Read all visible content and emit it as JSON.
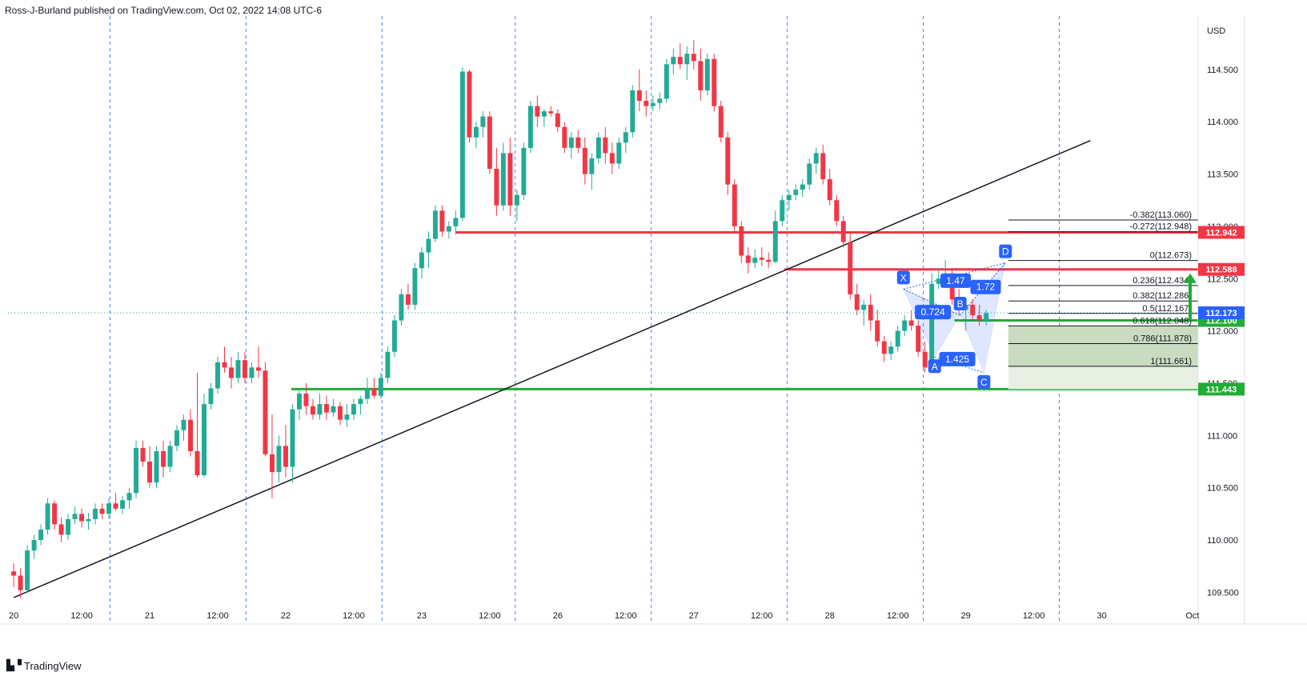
{
  "header": {
    "attribution": "Ross-J-Burland published on TradingView.com, Oct 02, 2022 14:08 UTC-6"
  },
  "footer": {
    "brand": "TradingView",
    "logo": "tradingview-logo-icon"
  },
  "chart_data": {
    "type": "candlestick",
    "instrument_note": "",
    "currency": "USD",
    "ylim": [
      109.35,
      114.95
    ],
    "y_ticks": [
      109.5,
      110.0,
      110.5,
      111.0,
      111.5,
      112.0,
      112.5,
      113.0,
      113.5,
      114.0,
      114.5
    ],
    "y_tick_labels": [
      "109.500",
      "110.000",
      "110.500",
      "111.000",
      "111.500",
      "112.000",
      "112.500",
      "113.000",
      "113.500",
      "114.000",
      "114.500"
    ],
    "x_tick_labels": [
      {
        "t": 0,
        "label": "20"
      },
      {
        "t": 12,
        "label": "12:00"
      },
      {
        "t": 24,
        "label": "21"
      },
      {
        "t": 36,
        "label": "12:00"
      },
      {
        "t": 48,
        "label": "22"
      },
      {
        "t": 60,
        "label": "12:00"
      },
      {
        "t": 72,
        "label": "23"
      },
      {
        "t": 84,
        "label": "12:00"
      },
      {
        "t": 96,
        "label": "26"
      },
      {
        "t": 108,
        "label": "12:00"
      },
      {
        "t": 120,
        "label": "27"
      },
      {
        "t": 132,
        "label": "12:00"
      },
      {
        "t": 144,
        "label": "28"
      },
      {
        "t": 156,
        "label": "12:00"
      },
      {
        "t": 168,
        "label": "29"
      },
      {
        "t": 180,
        "label": "12:00"
      },
      {
        "t": 192,
        "label": "30"
      },
      {
        "t": 208,
        "label": "Oct"
      }
    ],
    "session_dividers_t": [
      17,
      41,
      65,
      88.5,
      112.5,
      136.5,
      160.5,
      184.5
    ],
    "candles": [
      [
        0,
        109.7,
        109.78,
        109.55,
        109.66
      ],
      [
        1.2,
        109.66,
        109.73,
        109.45,
        109.52
      ],
      [
        2.4,
        109.52,
        109.95,
        109.5,
        109.9
      ],
      [
        3.6,
        109.9,
        110.05,
        109.82,
        110.0
      ],
      [
        4.8,
        110.0,
        110.15,
        109.95,
        110.1
      ],
      [
        6,
        110.1,
        110.4,
        110.05,
        110.35
      ],
      [
        7.2,
        110.35,
        110.38,
        110.1,
        110.15
      ],
      [
        8.4,
        110.15,
        110.22,
        109.98,
        110.05
      ],
      [
        9.6,
        110.05,
        110.25,
        110.0,
        110.2
      ],
      [
        10.8,
        110.2,
        110.32,
        110.15,
        110.25
      ],
      [
        12,
        110.25,
        110.3,
        110.12,
        110.18
      ],
      [
        13.2,
        110.18,
        110.26,
        110.1,
        110.2
      ],
      [
        14.4,
        110.2,
        110.35,
        110.15,
        110.3
      ],
      [
        15.6,
        110.3,
        110.35,
        110.2,
        110.25
      ],
      [
        16.8,
        110.25,
        110.4,
        110.2,
        110.35
      ],
      [
        18,
        110.35,
        110.45,
        110.28,
        110.3
      ],
      [
        19.2,
        110.3,
        110.42,
        110.25,
        110.38
      ],
      [
        20.4,
        110.38,
        110.5,
        110.3,
        110.45
      ],
      [
        21.6,
        110.45,
        110.95,
        110.4,
        110.88
      ],
      [
        22.8,
        110.88,
        110.95,
        110.7,
        110.75
      ],
      [
        24,
        110.75,
        110.9,
        110.5,
        110.55
      ],
      [
        25.2,
        110.55,
        110.9,
        110.5,
        110.85
      ],
      [
        26.4,
        110.85,
        110.95,
        110.6,
        110.7
      ],
      [
        27.6,
        110.7,
        110.95,
        110.65,
        110.9
      ],
      [
        28.8,
        110.9,
        111.1,
        110.85,
        111.05
      ],
      [
        30,
        111.05,
        111.2,
        110.95,
        111.15
      ],
      [
        31.2,
        111.15,
        111.25,
        110.8,
        110.85
      ],
      [
        32.4,
        110.85,
        111.6,
        110.6,
        110.62
      ],
      [
        33.6,
        110.62,
        111.4,
        110.6,
        111.3
      ],
      [
        34.8,
        111.3,
        111.5,
        111.25,
        111.45
      ],
      [
        36,
        111.45,
        111.75,
        111.4,
        111.7
      ],
      [
        37.2,
        111.7,
        111.85,
        111.6,
        111.65
      ],
      [
        38.4,
        111.65,
        111.75,
        111.45,
        111.55
      ],
      [
        39.6,
        111.55,
        111.8,
        111.5,
        111.72
      ],
      [
        40.8,
        111.72,
        111.8,
        111.5,
        111.55
      ],
      [
        42,
        111.55,
        111.7,
        111.5,
        111.65
      ],
      [
        43.2,
        111.65,
        111.85,
        111.55,
        111.62
      ],
      [
        44.4,
        111.62,
        111.7,
        110.8,
        110.82
      ],
      [
        45.6,
        110.82,
        111.2,
        110.4,
        110.65
      ],
      [
        46.8,
        110.65,
        111.0,
        110.55,
        110.9
      ],
      [
        48,
        110.9,
        111.1,
        110.6,
        110.7
      ],
      [
        49.2,
        110.7,
        111.3,
        110.55,
        111.25
      ],
      [
        50.4,
        111.25,
        111.45,
        111.15,
        111.4
      ],
      [
        51.6,
        111.4,
        111.5,
        111.2,
        111.28
      ],
      [
        52.8,
        111.28,
        111.35,
        111.15,
        111.2
      ],
      [
        54,
        111.2,
        111.4,
        111.15,
        111.3
      ],
      [
        55.2,
        111.3,
        111.38,
        111.15,
        111.22
      ],
      [
        56.4,
        111.22,
        111.35,
        111.18,
        111.28
      ],
      [
        57.6,
        111.28,
        111.32,
        111.1,
        111.15
      ],
      [
        58.8,
        111.15,
        111.3,
        111.08,
        111.2
      ],
      [
        60,
        111.2,
        111.35,
        111.15,
        111.3
      ],
      [
        61.2,
        111.3,
        111.38,
        111.2,
        111.35
      ],
      [
        62.4,
        111.35,
        111.55,
        111.3,
        111.45
      ],
      [
        63.6,
        111.45,
        111.55,
        111.35,
        111.38
      ],
      [
        64.8,
        111.38,
        111.6,
        111.35,
        111.55
      ],
      [
        66,
        111.55,
        111.85,
        111.5,
        111.8
      ],
      [
        67.2,
        111.8,
        112.15,
        111.75,
        112.1
      ],
      [
        68.4,
        112.1,
        112.4,
        112.05,
        112.35
      ],
      [
        69.6,
        112.35,
        112.45,
        112.2,
        112.25
      ],
      [
        70.8,
        112.25,
        112.65,
        112.2,
        112.6
      ],
      [
        72,
        112.6,
        112.8,
        112.5,
        112.75
      ],
      [
        73.2,
        112.75,
        112.95,
        112.6,
        112.88
      ],
      [
        74.4,
        112.88,
        113.2,
        112.85,
        113.15
      ],
      [
        75.6,
        113.15,
        113.2,
        112.9,
        112.95
      ],
      [
        76.8,
        112.95,
        113.05,
        112.88,
        113.0
      ],
      [
        78,
        113.0,
        113.15,
        112.92,
        113.08
      ],
      [
        79.2,
        113.08,
        114.52,
        113.05,
        114.48
      ],
      [
        80.4,
        114.48,
        114.5,
        113.8,
        113.85
      ],
      [
        81.6,
        113.85,
        114.0,
        113.75,
        113.95
      ],
      [
        82.8,
        113.95,
        114.1,
        113.85,
        114.05
      ],
      [
        84,
        114.05,
        114.1,
        113.5,
        113.55
      ],
      [
        85.2,
        113.55,
        113.75,
        113.1,
        113.2
      ],
      [
        86.4,
        113.2,
        113.8,
        113.15,
        113.7
      ],
      [
        87.6,
        113.7,
        113.85,
        113.1,
        113.2
      ],
      [
        88.8,
        113.2,
        113.35,
        113.05,
        113.3
      ],
      [
        90,
        113.3,
        113.8,
        113.25,
        113.75
      ],
      [
        91.2,
        113.75,
        114.2,
        113.7,
        114.15
      ],
      [
        92.4,
        114.15,
        114.25,
        113.95,
        114.05
      ],
      [
        93.6,
        114.05,
        114.12,
        113.95,
        114.1
      ],
      [
        94.8,
        114.1,
        114.15,
        114.05,
        114.08
      ],
      [
        96,
        114.08,
        114.12,
        113.9,
        113.95
      ],
      [
        97.2,
        113.95,
        114.0,
        113.7,
        113.75
      ],
      [
        98.4,
        113.75,
        113.9,
        113.65,
        113.85
      ],
      [
        99.6,
        113.85,
        113.92,
        113.7,
        113.75
      ],
      [
        100.8,
        113.75,
        113.85,
        113.4,
        113.5
      ],
      [
        102,
        113.5,
        113.7,
        113.35,
        113.65
      ],
      [
        103.2,
        113.65,
        113.9,
        113.6,
        113.85
      ],
      [
        104.4,
        113.85,
        113.95,
        113.6,
        113.7
      ],
      [
        105.6,
        113.7,
        113.8,
        113.5,
        113.6
      ],
      [
        106.8,
        113.6,
        113.85,
        113.55,
        113.8
      ],
      [
        108,
        113.8,
        113.95,
        113.7,
        113.9
      ],
      [
        109.2,
        113.9,
        114.35,
        113.85,
        114.3
      ],
      [
        110.4,
        114.3,
        114.5,
        114.1,
        114.2
      ],
      [
        111.6,
        114.2,
        114.3,
        114.05,
        114.15
      ],
      [
        112.8,
        114.15,
        114.25,
        114.1,
        114.18
      ],
      [
        114,
        114.18,
        114.28,
        114.12,
        114.22
      ],
      [
        115.2,
        114.22,
        114.6,
        114.18,
        114.55
      ],
      [
        116.4,
        114.55,
        114.7,
        114.45,
        114.62
      ],
      [
        117.6,
        114.62,
        114.75,
        114.5,
        114.55
      ],
      [
        118.8,
        114.55,
        114.72,
        114.4,
        114.65
      ],
      [
        120,
        114.65,
        114.78,
        114.5,
        114.58
      ],
      [
        121.2,
        114.58,
        114.7,
        114.2,
        114.3
      ],
      [
        122.4,
        114.3,
        114.65,
        114.25,
        114.6
      ],
      [
        123.6,
        114.6,
        114.65,
        114.1,
        114.15
      ],
      [
        124.8,
        114.15,
        114.2,
        113.8,
        113.85
      ],
      [
        126,
        113.85,
        113.9,
        113.3,
        113.4
      ],
      [
        127.2,
        113.4,
        113.45,
        112.95,
        113.0
      ],
      [
        128.4,
        113.0,
        113.05,
        112.65,
        112.72
      ],
      [
        129.6,
        112.72,
        112.8,
        112.55,
        112.65
      ],
      [
        130.8,
        112.65,
        112.78,
        112.6,
        112.7
      ],
      [
        132,
        112.7,
        112.8,
        112.62,
        112.68
      ],
      [
        133.2,
        112.68,
        112.75,
        112.6,
        112.66
      ],
      [
        134.4,
        112.66,
        113.15,
        112.65,
        113.05
      ],
      [
        135.6,
        113.05,
        113.3,
        113.0,
        113.25
      ],
      [
        136.8,
        113.25,
        113.35,
        113.15,
        113.3
      ],
      [
        138,
        113.3,
        113.4,
        113.25,
        113.35
      ],
      [
        139.2,
        113.35,
        113.45,
        113.28,
        113.4
      ],
      [
        140.4,
        113.4,
        113.65,
        113.35,
        113.6
      ],
      [
        141.6,
        113.6,
        113.75,
        113.5,
        113.7
      ],
      [
        142.8,
        113.7,
        113.78,
        113.4,
        113.45
      ],
      [
        144,
        113.45,
        113.55,
        113.2,
        113.25
      ],
      [
        145.2,
        113.25,
        113.3,
        113.0,
        113.05
      ],
      [
        146.4,
        113.05,
        113.1,
        112.8,
        112.85
      ],
      [
        147.6,
        112.85,
        112.95,
        112.3,
        112.35
      ],
      [
        148.8,
        112.35,
        112.45,
        112.15,
        112.2
      ],
      [
        150,
        112.2,
        112.3,
        112.05,
        112.25
      ],
      [
        151.2,
        112.25,
        112.35,
        112.0,
        112.1
      ],
      [
        152.4,
        112.1,
        112.2,
        111.85,
        111.9
      ],
      [
        153.6,
        111.9,
        111.95,
        111.7,
        111.78
      ],
      [
        154.8,
        111.78,
        111.9,
        111.72,
        111.85
      ],
      [
        156,
        111.85,
        112.05,
        111.8,
        112.0
      ],
      [
        157.2,
        112.0,
        112.15,
        111.95,
        112.1
      ],
      [
        158.4,
        112.1,
        112.2,
        112.0,
        112.05
      ],
      [
        159.6,
        112.05,
        112.1,
        111.75,
        111.8
      ],
      [
        160.8,
        111.8,
        111.9,
        111.6,
        111.65
      ],
      [
        162,
        111.65,
        112.55,
        111.6,
        112.45
      ],
      [
        163.2,
        112.45,
        112.6,
        112.4,
        112.5
      ],
      [
        164.4,
        112.5,
        112.68,
        112.45,
        112.55
      ],
      [
        165.6,
        112.55,
        112.6,
        112.25,
        112.3
      ],
      [
        166.8,
        112.3,
        112.4,
        112.15,
        112.2
      ],
      [
        168,
        112.2,
        112.3,
        112.0,
        112.25
      ],
      [
        169.2,
        112.25,
        112.3,
        112.1,
        112.15
      ],
      [
        170.4,
        112.15,
        112.25,
        112.05,
        112.1
      ],
      [
        171.6,
        112.1,
        112.2,
        112.05,
        112.17
      ]
    ],
    "horizontal_levels": [
      {
        "label": "112.942",
        "value": 112.942,
        "color": "#f23645",
        "t_start": 78
      },
      {
        "label": "112.588",
        "value": 112.588,
        "color": "#f23645",
        "t_start": 136
      },
      {
        "label": "111.443",
        "value": 111.443,
        "color": "#22ab36",
        "t_start": 49
      },
      {
        "label": "112.100",
        "value": 112.1,
        "color": "#22ab36",
        "t_start": 166
      }
    ],
    "current_price": {
      "label": "112.173",
      "value": 112.173,
      "color": "#2962ff"
    },
    "trendline": {
      "t1": 0,
      "y1": 109.45,
      "t2": 190,
      "y2": 113.82,
      "color": "#131722"
    },
    "fib_levels": [
      {
        "label": "-0.382(113.060)",
        "value": 113.06
      },
      {
        "label": "-0.272(112.948)",
        "value": 112.948
      },
      {
        "label": "0(112.673)",
        "value": 112.673
      },
      {
        "label": "0.236(112.434)",
        "value": 112.434
      },
      {
        "label": "0.382(112.286)",
        "value": 112.286
      },
      {
        "label": "0.5(112.167)",
        "value": 112.167
      },
      {
        "label": "0.618(112.048)",
        "value": 112.048
      },
      {
        "label": "0.786(111.878)",
        "value": 111.878
      },
      {
        "label": "1(111.661)",
        "value": 111.661
      }
    ],
    "harmonic": {
      "points": [
        {
          "label": "X",
          "t": 157,
          "y": 112.4
        },
        {
          "label": "A",
          "t": 162.5,
          "y": 111.75
        },
        {
          "label": "B",
          "t": 167,
          "y": 112.15
        },
        {
          "label": "C",
          "t": 171.2,
          "y": 111.6
        },
        {
          "label": "D",
          "t": 175,
          "y": 112.65
        }
      ],
      "ratios": [
        {
          "label": "0.724",
          "t": 162.2,
          "y": 112.18
        },
        {
          "label": "1.47",
          "t": 166.2,
          "y": 112.48
        },
        {
          "label": "1.425",
          "t": 166.5,
          "y": 111.73
        },
        {
          "label": "1.72",
          "t": 171.5,
          "y": 112.42
        }
      ]
    },
    "target_arrow": {
      "value_from": 112.1,
      "value_to": 112.55,
      "color": "#22ab36"
    }
  }
}
